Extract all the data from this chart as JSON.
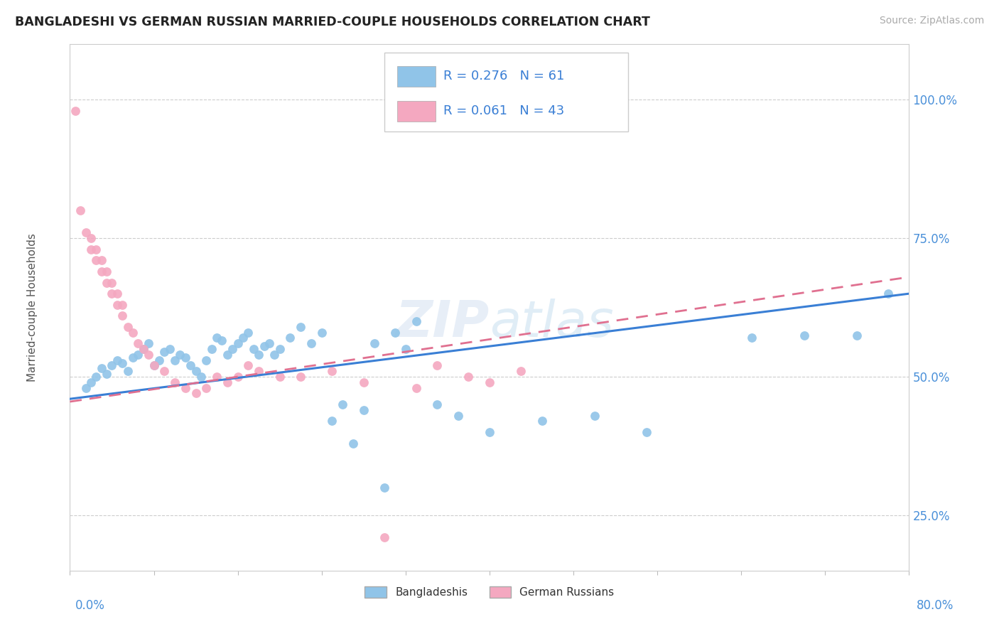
{
  "title": "BANGLADESHI VS GERMAN RUSSIAN MARRIED-COUPLE HOUSEHOLDS CORRELATION CHART",
  "source": "Source: ZipAtlas.com",
  "ylabel": "Married-couple Households",
  "yticks": [
    25.0,
    50.0,
    75.0,
    100.0
  ],
  "ytick_labels": [
    "25.0%",
    "50.0%",
    "75.0%",
    "100.0%"
  ],
  "xlim": [
    0.0,
    80.0
  ],
  "ylim": [
    15.0,
    110.0
  ],
  "color_bangladeshi": "#90c4e8",
  "color_german_russian": "#f4a8c0",
  "color_trend_bangladeshi": "#3a7fd5",
  "color_trend_german_russian": "#e07090",
  "background_color": "#ffffff",
  "trend_b_x0": 0.0,
  "trend_b_y0": 46.0,
  "trend_b_x1": 80.0,
  "trend_b_y1": 65.0,
  "trend_gr_x0": 0.0,
  "trend_gr_y0": 45.5,
  "trend_gr_x1": 80.0,
  "trend_gr_y1": 68.0,
  "bangladeshi_x": [
    1.5,
    2.0,
    2.5,
    3.0,
    3.5,
    4.0,
    4.5,
    5.0,
    5.5,
    6.0,
    6.5,
    7.0,
    7.5,
    8.0,
    8.5,
    9.0,
    9.5,
    10.0,
    10.5,
    11.0,
    11.5,
    12.0,
    12.5,
    13.0,
    13.5,
    14.0,
    14.5,
    15.0,
    15.5,
    16.0,
    16.5,
    17.0,
    17.5,
    18.0,
    18.5,
    19.0,
    19.5,
    20.0,
    21.0,
    22.0,
    23.0,
    24.0,
    25.0,
    26.0,
    27.0,
    28.0,
    29.0,
    30.0,
    31.0,
    32.0,
    33.0,
    35.0,
    37.0,
    40.0,
    45.0,
    50.0,
    55.0,
    65.0,
    70.0,
    75.0,
    78.0
  ],
  "bangladeshi_y": [
    48.0,
    49.0,
    50.0,
    51.5,
    50.5,
    52.0,
    53.0,
    52.5,
    51.0,
    53.5,
    54.0,
    55.0,
    56.0,
    52.0,
    53.0,
    54.5,
    55.0,
    53.0,
    54.0,
    53.5,
    52.0,
    51.0,
    50.0,
    53.0,
    55.0,
    57.0,
    56.5,
    54.0,
    55.0,
    56.0,
    57.0,
    58.0,
    55.0,
    54.0,
    55.5,
    56.0,
    54.0,
    55.0,
    57.0,
    59.0,
    56.0,
    58.0,
    42.0,
    45.0,
    38.0,
    44.0,
    56.0,
    30.0,
    58.0,
    55.0,
    60.0,
    45.0,
    43.0,
    40.0,
    42.0,
    43.0,
    40.0,
    57.0,
    57.5,
    57.5,
    65.0
  ],
  "german_russian_x": [
    0.5,
    1.0,
    1.5,
    2.0,
    2.5,
    3.0,
    3.5,
    4.0,
    4.5,
    5.0,
    5.5,
    6.0,
    6.5,
    7.0,
    7.5,
    8.0,
    9.0,
    10.0,
    11.0,
    12.0,
    13.0,
    14.0,
    15.0,
    16.0,
    17.0,
    18.0,
    20.0,
    22.0,
    25.0,
    28.0,
    30.0,
    33.0,
    35.0,
    38.0,
    40.0,
    43.0,
    2.0,
    2.5,
    3.0,
    3.5,
    4.0,
    4.5,
    5.0
  ],
  "german_russian_y": [
    98.0,
    80.0,
    76.0,
    73.0,
    71.0,
    69.0,
    67.0,
    65.0,
    63.0,
    61.0,
    59.0,
    58.0,
    56.0,
    55.0,
    54.0,
    52.0,
    51.0,
    49.0,
    48.0,
    47.0,
    48.0,
    50.0,
    49.0,
    50.0,
    52.0,
    51.0,
    50.0,
    50.0,
    51.0,
    49.0,
    21.0,
    48.0,
    52.0,
    50.0,
    49.0,
    51.0,
    75.0,
    73.0,
    71.0,
    69.0,
    67.0,
    65.0,
    63.0
  ]
}
